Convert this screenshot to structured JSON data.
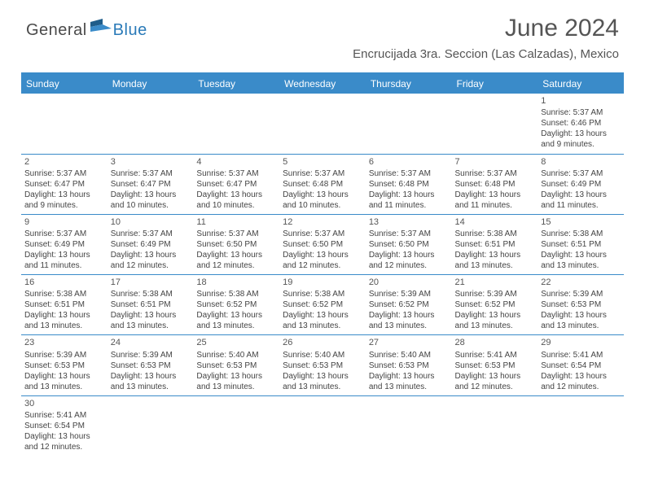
{
  "logo": {
    "text1": "General",
    "text2": "Blue"
  },
  "title": "June 2024",
  "location": "Encrucijada 3ra. Seccion (Las Calzadas), Mexico",
  "colors": {
    "header_bg": "#3a8bc9",
    "header_text": "#ffffff",
    "logo_gray": "#4a4a4a",
    "logo_blue": "#2a7ab8",
    "text": "#444444",
    "border": "#3a8bc9"
  },
  "weekdays": [
    "Sunday",
    "Monday",
    "Tuesday",
    "Wednesday",
    "Thursday",
    "Friday",
    "Saturday"
  ],
  "weeks": [
    [
      null,
      null,
      null,
      null,
      null,
      null,
      {
        "day": "1",
        "sunrise": "Sunrise: 5:37 AM",
        "sunset": "Sunset: 6:46 PM",
        "daylight": "Daylight: 13 hours and 9 minutes."
      }
    ],
    [
      {
        "day": "2",
        "sunrise": "Sunrise: 5:37 AM",
        "sunset": "Sunset: 6:47 PM",
        "daylight": "Daylight: 13 hours and 9 minutes."
      },
      {
        "day": "3",
        "sunrise": "Sunrise: 5:37 AM",
        "sunset": "Sunset: 6:47 PM",
        "daylight": "Daylight: 13 hours and 10 minutes."
      },
      {
        "day": "4",
        "sunrise": "Sunrise: 5:37 AM",
        "sunset": "Sunset: 6:47 PM",
        "daylight": "Daylight: 13 hours and 10 minutes."
      },
      {
        "day": "5",
        "sunrise": "Sunrise: 5:37 AM",
        "sunset": "Sunset: 6:48 PM",
        "daylight": "Daylight: 13 hours and 10 minutes."
      },
      {
        "day": "6",
        "sunrise": "Sunrise: 5:37 AM",
        "sunset": "Sunset: 6:48 PM",
        "daylight": "Daylight: 13 hours and 11 minutes."
      },
      {
        "day": "7",
        "sunrise": "Sunrise: 5:37 AM",
        "sunset": "Sunset: 6:48 PM",
        "daylight": "Daylight: 13 hours and 11 minutes."
      },
      {
        "day": "8",
        "sunrise": "Sunrise: 5:37 AM",
        "sunset": "Sunset: 6:49 PM",
        "daylight": "Daylight: 13 hours and 11 minutes."
      }
    ],
    [
      {
        "day": "9",
        "sunrise": "Sunrise: 5:37 AM",
        "sunset": "Sunset: 6:49 PM",
        "daylight": "Daylight: 13 hours and 11 minutes."
      },
      {
        "day": "10",
        "sunrise": "Sunrise: 5:37 AM",
        "sunset": "Sunset: 6:49 PM",
        "daylight": "Daylight: 13 hours and 12 minutes."
      },
      {
        "day": "11",
        "sunrise": "Sunrise: 5:37 AM",
        "sunset": "Sunset: 6:50 PM",
        "daylight": "Daylight: 13 hours and 12 minutes."
      },
      {
        "day": "12",
        "sunrise": "Sunrise: 5:37 AM",
        "sunset": "Sunset: 6:50 PM",
        "daylight": "Daylight: 13 hours and 12 minutes."
      },
      {
        "day": "13",
        "sunrise": "Sunrise: 5:37 AM",
        "sunset": "Sunset: 6:50 PM",
        "daylight": "Daylight: 13 hours and 12 minutes."
      },
      {
        "day": "14",
        "sunrise": "Sunrise: 5:38 AM",
        "sunset": "Sunset: 6:51 PM",
        "daylight": "Daylight: 13 hours and 13 minutes."
      },
      {
        "day": "15",
        "sunrise": "Sunrise: 5:38 AM",
        "sunset": "Sunset: 6:51 PM",
        "daylight": "Daylight: 13 hours and 13 minutes."
      }
    ],
    [
      {
        "day": "16",
        "sunrise": "Sunrise: 5:38 AM",
        "sunset": "Sunset: 6:51 PM",
        "daylight": "Daylight: 13 hours and 13 minutes."
      },
      {
        "day": "17",
        "sunrise": "Sunrise: 5:38 AM",
        "sunset": "Sunset: 6:51 PM",
        "daylight": "Daylight: 13 hours and 13 minutes."
      },
      {
        "day": "18",
        "sunrise": "Sunrise: 5:38 AM",
        "sunset": "Sunset: 6:52 PM",
        "daylight": "Daylight: 13 hours and 13 minutes."
      },
      {
        "day": "19",
        "sunrise": "Sunrise: 5:38 AM",
        "sunset": "Sunset: 6:52 PM",
        "daylight": "Daylight: 13 hours and 13 minutes."
      },
      {
        "day": "20",
        "sunrise": "Sunrise: 5:39 AM",
        "sunset": "Sunset: 6:52 PM",
        "daylight": "Daylight: 13 hours and 13 minutes."
      },
      {
        "day": "21",
        "sunrise": "Sunrise: 5:39 AM",
        "sunset": "Sunset: 6:52 PM",
        "daylight": "Daylight: 13 hours and 13 minutes."
      },
      {
        "day": "22",
        "sunrise": "Sunrise: 5:39 AM",
        "sunset": "Sunset: 6:53 PM",
        "daylight": "Daylight: 13 hours and 13 minutes."
      }
    ],
    [
      {
        "day": "23",
        "sunrise": "Sunrise: 5:39 AM",
        "sunset": "Sunset: 6:53 PM",
        "daylight": "Daylight: 13 hours and 13 minutes."
      },
      {
        "day": "24",
        "sunrise": "Sunrise: 5:39 AM",
        "sunset": "Sunset: 6:53 PM",
        "daylight": "Daylight: 13 hours and 13 minutes."
      },
      {
        "day": "25",
        "sunrise": "Sunrise: 5:40 AM",
        "sunset": "Sunset: 6:53 PM",
        "daylight": "Daylight: 13 hours and 13 minutes."
      },
      {
        "day": "26",
        "sunrise": "Sunrise: 5:40 AM",
        "sunset": "Sunset: 6:53 PM",
        "daylight": "Daylight: 13 hours and 13 minutes."
      },
      {
        "day": "27",
        "sunrise": "Sunrise: 5:40 AM",
        "sunset": "Sunset: 6:53 PM",
        "daylight": "Daylight: 13 hours and 13 minutes."
      },
      {
        "day": "28",
        "sunrise": "Sunrise: 5:41 AM",
        "sunset": "Sunset: 6:53 PM",
        "daylight": "Daylight: 13 hours and 12 minutes."
      },
      {
        "day": "29",
        "sunrise": "Sunrise: 5:41 AM",
        "sunset": "Sunset: 6:54 PM",
        "daylight": "Daylight: 13 hours and 12 minutes."
      }
    ],
    [
      {
        "day": "30",
        "sunrise": "Sunrise: 5:41 AM",
        "sunset": "Sunset: 6:54 PM",
        "daylight": "Daylight: 13 hours and 12 minutes."
      },
      null,
      null,
      null,
      null,
      null,
      null
    ]
  ]
}
